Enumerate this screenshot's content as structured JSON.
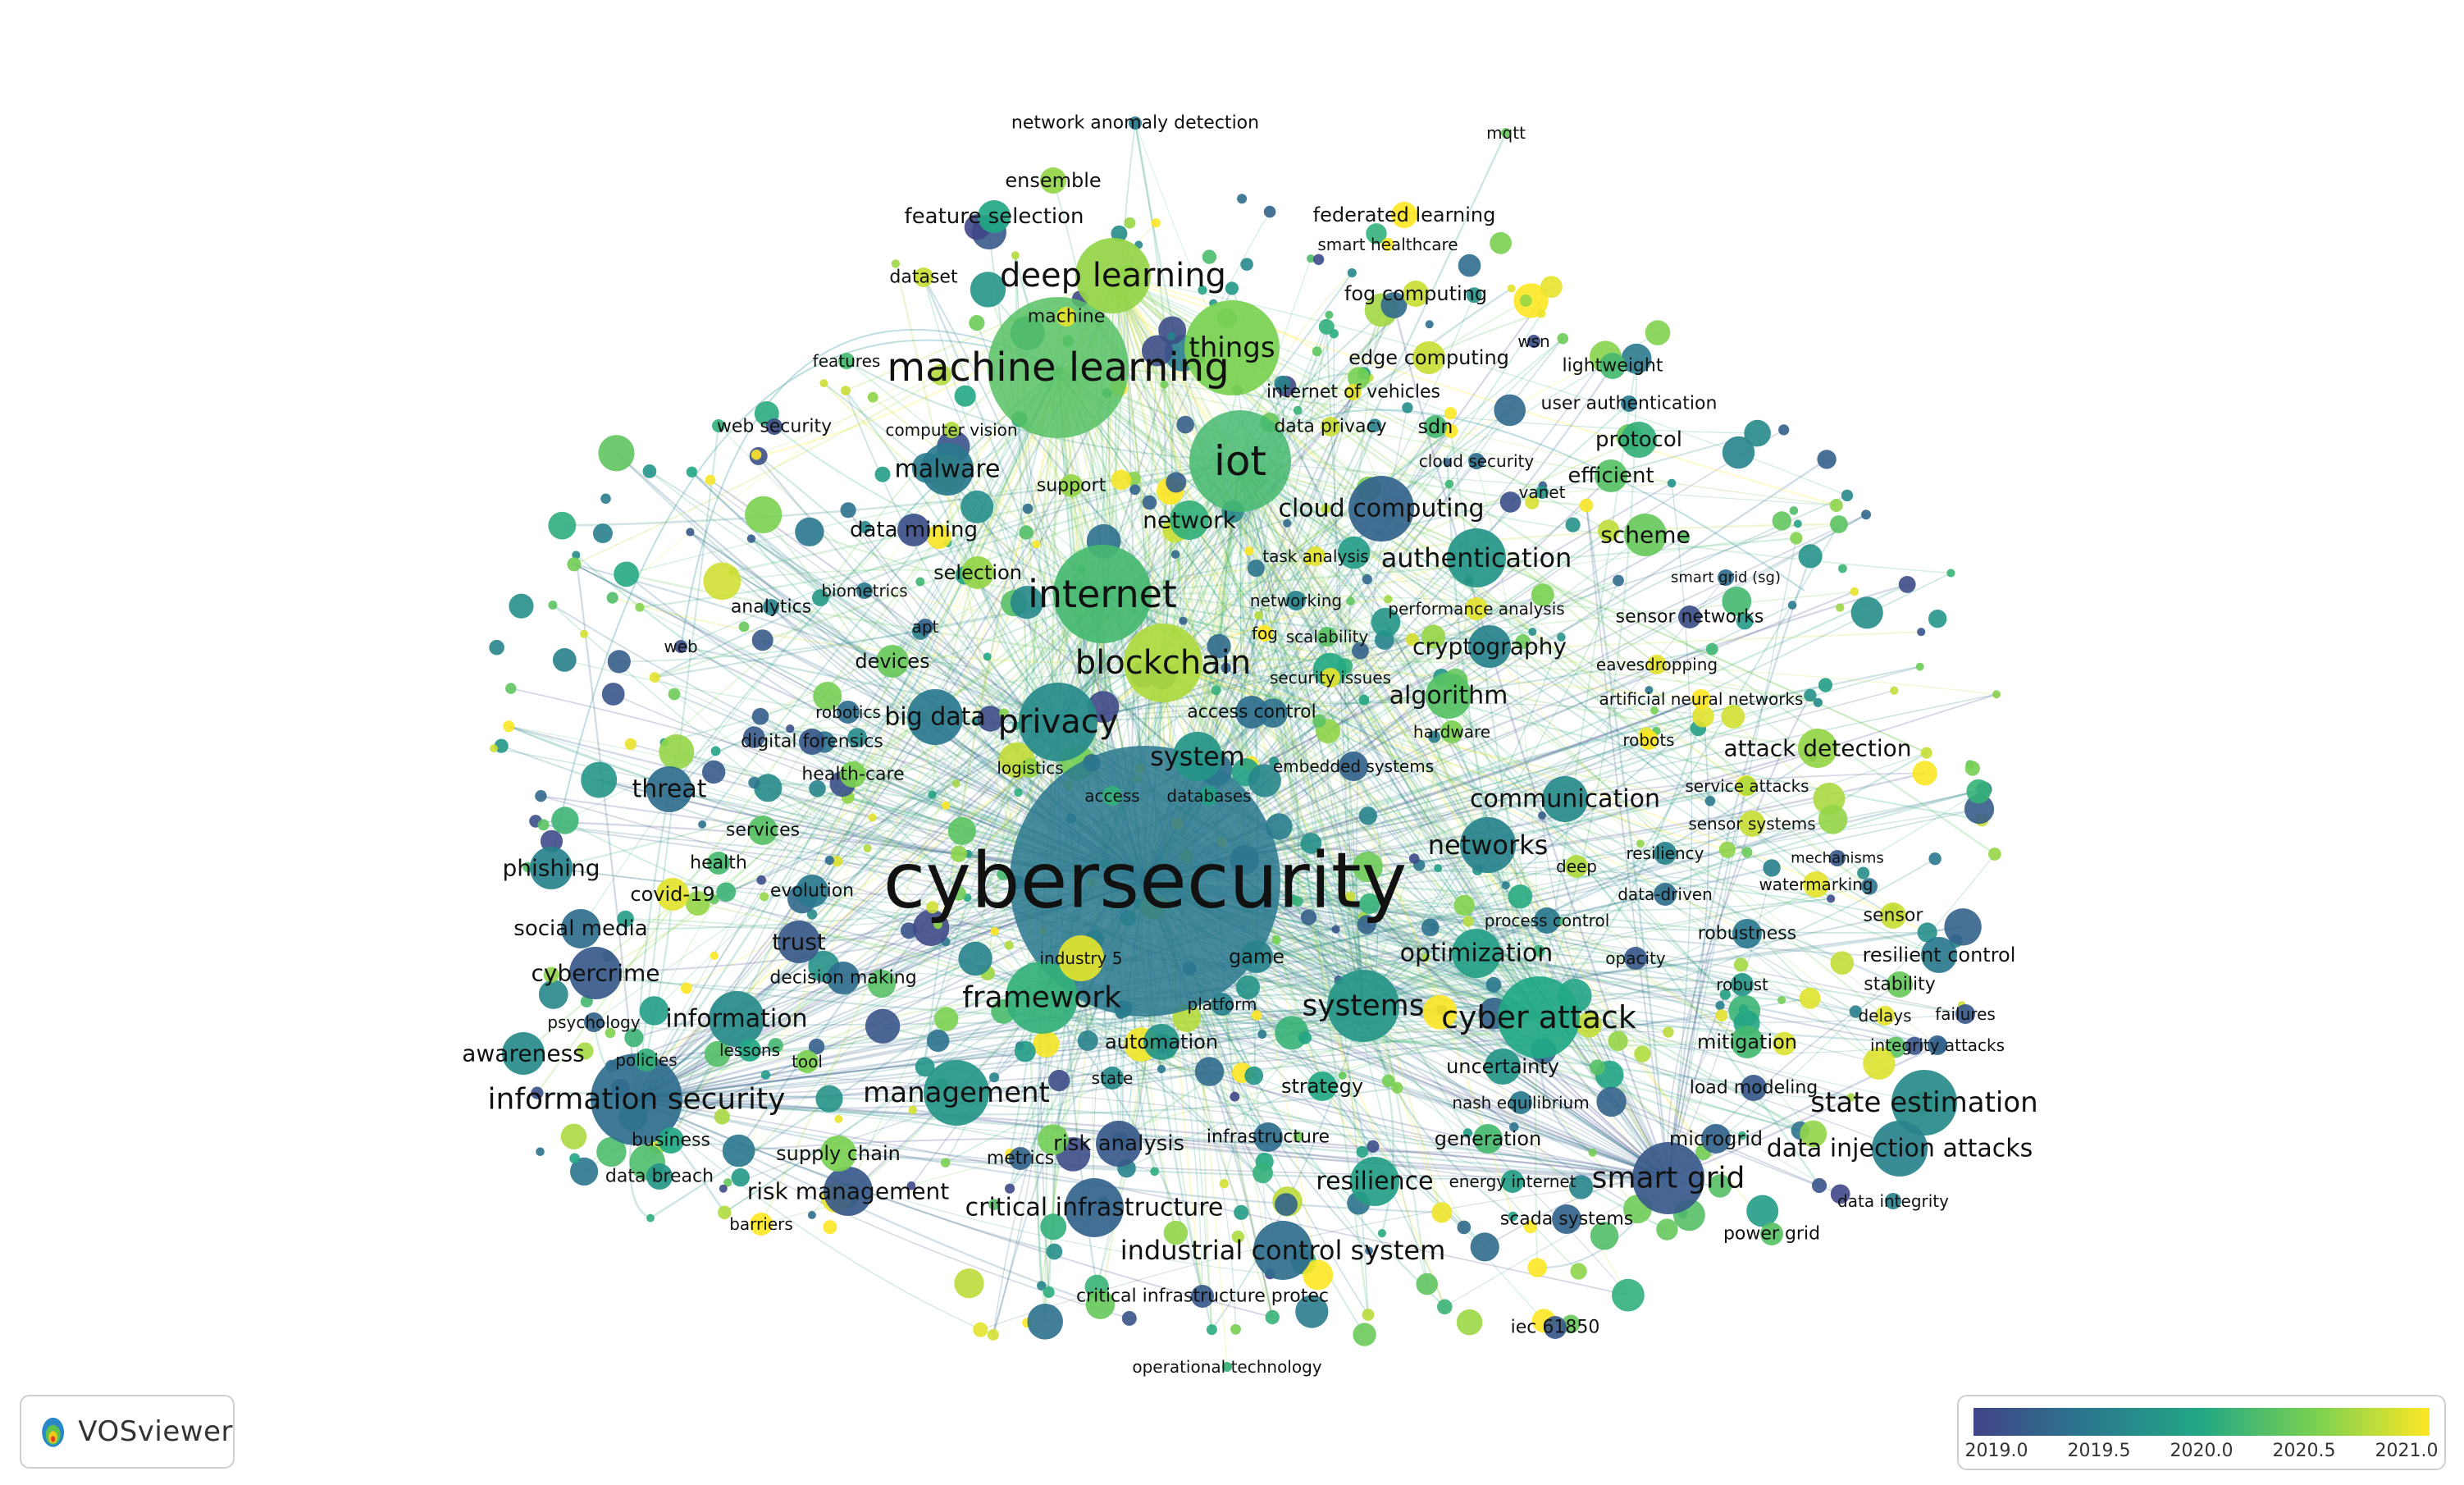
{
  "app": {
    "name": "VOSviewer"
  },
  "legend": {
    "colors": [
      "#414487",
      "#2a788e",
      "#22a884",
      "#7ad151",
      "#fde725"
    ],
    "ticks": [
      "2019.0",
      "2019.5",
      "2020.0",
      "2020.5",
      "2021.0"
    ]
  },
  "nodes": [
    {
      "label": "cybersecurity",
      "year": 2019.5
    },
    {
      "label": "machine learning",
      "year": 2020.3
    },
    {
      "label": "deep learning",
      "year": 2020.6
    },
    {
      "label": "iot",
      "year": 2020.2
    },
    {
      "label": "internet",
      "year": 2020.2
    },
    {
      "label": "blockchain",
      "year": 2020.7
    },
    {
      "label": "privacy",
      "year": 2019.7
    },
    {
      "label": "things",
      "year": 2020.5
    },
    {
      "label": "big data",
      "year": 2019.5
    },
    {
      "label": "system",
      "year": 2019.8
    },
    {
      "label": "framework",
      "year": 2020.1
    },
    {
      "label": "systems",
      "year": 2019.8
    },
    {
      "label": "cyber attack",
      "year": 2020.0
    },
    {
      "label": "smart grid",
      "year": 2019.2
    },
    {
      "label": "information security",
      "year": 2019.4
    },
    {
      "label": "management",
      "year": 2019.8
    },
    {
      "label": "networks",
      "year": 2019.6
    },
    {
      "label": "cloud computing",
      "year": 2019.3
    },
    {
      "label": "authentication",
      "year": 2019.8
    },
    {
      "label": "malware",
      "year": 2019.5
    },
    {
      "label": "industrial control system",
      "year": 2019.4
    },
    {
      "label": "critical infrastructure",
      "year": 2019.3
    },
    {
      "label": "state estimation",
      "year": 2019.7
    },
    {
      "label": "data injection attacks",
      "year": 2019.6
    },
    {
      "label": "optimization",
      "year": 2019.9
    },
    {
      "label": "communication",
      "year": 2019.7
    },
    {
      "label": "algorithm",
      "year": 2020.3
    },
    {
      "label": "cryptography",
      "year": 2019.6
    },
    {
      "label": "threat",
      "year": 2019.4
    },
    {
      "label": "phishing",
      "year": 2019.6
    },
    {
      "label": "cybercrime",
      "year": 2019.2
    },
    {
      "label": "information",
      "year": 2019.7
    },
    {
      "label": "awareness",
      "year": 2019.7
    },
    {
      "label": "risk management",
      "year": 2019.2
    },
    {
      "label": "risk analysis",
      "year": 2019.2
    },
    {
      "label": "resilience",
      "year": 2019.9
    },
    {
      "label": "network",
      "year": 2020.1
    },
    {
      "label": "attack detection",
      "year": 2020.6
    },
    {
      "label": "scheme",
      "year": 2020.4
    },
    {
      "label": "protocol",
      "year": 2020.1
    },
    {
      "label": "efficient",
      "year": 2020.3
    },
    {
      "label": "feature selection",
      "year": 2020.0
    },
    {
      "label": "ensemble",
      "year": 2020.6
    },
    {
      "label": "network anomaly detection",
      "year": 2019.5
    },
    {
      "label": "mqtt",
      "year": 2020.4
    },
    {
      "label": "federated learning",
      "year": 2021.0
    },
    {
      "label": "smart healthcare",
      "year": 2021.0
    },
    {
      "label": "fog computing",
      "year": 2020.8
    },
    {
      "label": "wsn",
      "year": 2019.1
    },
    {
      "label": "lightweight",
      "year": 2020.2
    },
    {
      "label": "edge computing",
      "year": 2020.8
    },
    {
      "label": "internet of vehicles",
      "year": 2020.9
    },
    {
      "label": "user authentication",
      "year": 2019.5
    },
    {
      "label": "data privacy",
      "year": 2020.8
    },
    {
      "label": "sdn",
      "year": 2020.2
    },
    {
      "label": "cloud security",
      "year": 2019.4
    },
    {
      "label": "vanet",
      "year": 2019.8
    },
    {
      "label": "dataset",
      "year": 2020.8
    },
    {
      "label": "machine",
      "year": 2020.9
    },
    {
      "label": "features",
      "year": 2020.2
    },
    {
      "label": "web security",
      "year": 2019.1
    },
    {
      "label": "computer vision",
      "year": 2020.7
    },
    {
      "label": "support",
      "year": 2020.6
    },
    {
      "label": "data mining",
      "year": 2019.1
    },
    {
      "label": "selection",
      "year": 2020.6
    },
    {
      "label": "biometrics",
      "year": 2019.5
    },
    {
      "label": "analytics",
      "year": 2019.6
    },
    {
      "label": "apt",
      "year": 2019.3
    },
    {
      "label": "web",
      "year": 2019.1
    },
    {
      "label": "devices",
      "year": 2020.4
    },
    {
      "label": "robotics",
      "year": 2019.4
    },
    {
      "label": "digital forensics",
      "year": 2019.2
    },
    {
      "label": "health-care",
      "year": 2020.5
    },
    {
      "label": "services",
      "year": 2020.3
    },
    {
      "label": "health",
      "year": 2020.2
    },
    {
      "label": "covid-19",
      "year": 2020.9
    },
    {
      "label": "evolution",
      "year": 2019.5
    },
    {
      "label": "social media",
      "year": 2019.4
    },
    {
      "label": "trust",
      "year": 2019.2
    },
    {
      "label": "decision making",
      "year": 2019.4
    },
    {
      "label": "psychology",
      "year": 2019.3
    },
    {
      "label": "policies",
      "year": 2020.1
    },
    {
      "label": "lessons",
      "year": 2020.0
    },
    {
      "label": "tool",
      "year": 2020.5
    },
    {
      "label": "business",
      "year": 2020.0
    },
    {
      "label": "supply chain",
      "year": 2020.5
    },
    {
      "label": "data breach",
      "year": 2019.8
    },
    {
      "label": "barriers",
      "year": 2021.0
    },
    {
      "label": "metrics",
      "year": 2019.3
    },
    {
      "label": "logistics",
      "year": 2020.6
    },
    {
      "label": "access",
      "year": 2020.1
    },
    {
      "label": "databases",
      "year": 2019.9
    },
    {
      "label": "industry 5",
      "year": 2020.9
    },
    {
      "label": "game",
      "year": 2019.6
    },
    {
      "label": "platform",
      "year": 2019.6
    },
    {
      "label": "automation",
      "year": 2019.8
    },
    {
      "label": "state",
      "year": 2019.7
    },
    {
      "label": "infrastructure",
      "year": 2019.4
    },
    {
      "label": "strategy",
      "year": 2020.0
    },
    {
      "label": "critical infrastructure protec",
      "year": 2019.2
    },
    {
      "label": "operational technology",
      "year": 2020.1
    },
    {
      "label": "iec 61850",
      "year": 2019.2
    },
    {
      "label": "scada systems",
      "year": 2019.3
    },
    {
      "label": "energy internet",
      "year": 2019.9
    },
    {
      "label": "generation",
      "year": 2020.2
    },
    {
      "label": "nash equilibrium",
      "year": 2019.5
    },
    {
      "label": "uncertainty",
      "year": 2019.8
    },
    {
      "label": "microgrid",
      "year": 2019.3
    },
    {
      "label": "load modeling",
      "year": 2019.2
    },
    {
      "label": "mitigation",
      "year": 2020.2
    },
    {
      "label": "power grid",
      "year": 2020.3
    },
    {
      "label": "data integrity",
      "year": 2019.6
    },
    {
      "label": "integrity attacks",
      "year": 2019.3
    },
    {
      "label": "failures",
      "year": 2019.2
    },
    {
      "label": "delays",
      "year": 2020.9
    },
    {
      "label": "stability",
      "year": 2020.4
    },
    {
      "label": "robust",
      "year": 2019.8
    },
    {
      "label": "resilient control",
      "year": 2019.5
    },
    {
      "label": "sensor",
      "year": 2020.8
    },
    {
      "label": "robustness",
      "year": 2019.5
    },
    {
      "label": "opacity",
      "year": 2019.2
    },
    {
      "label": "data-driven",
      "year": 2019.4
    },
    {
      "label": "process control",
      "year": 2019.5
    },
    {
      "label": "deep",
      "year": 2020.7
    },
    {
      "label": "watermarking",
      "year": 2020.9
    },
    {
      "label": "resiliency",
      "year": 2019.6
    },
    {
      "label": "mechanisms",
      "year": 2019.2
    },
    {
      "label": "sensor systems",
      "year": 2020.8
    },
    {
      "label": "service attacks",
      "year": 2020.7
    },
    {
      "label": "robots",
      "year": 2021.0
    },
    {
      "label": "artificial neural networks",
      "year": 2021.0
    },
    {
      "label": "eavesdropping",
      "year": 2020.9
    },
    {
      "label": "sensor networks",
      "year": 2019.1
    },
    {
      "label": "smart grid (sg)",
      "year": 2019.4
    },
    {
      "label": "performance analysis",
      "year": 2020.9
    },
    {
      "label": "task analysis",
      "year": 2020.9
    },
    {
      "label": "networking",
      "year": 2019.6
    },
    {
      "label": "fog",
      "year": 2021.0
    },
    {
      "label": "scalability",
      "year": 2020.3
    },
    {
      "label": "security issues",
      "year": 2020.9
    },
    {
      "label": "access control",
      "year": 2019.4
    },
    {
      "label": "hardware",
      "year": 2020.5
    },
    {
      "label": "embedded systems",
      "year": 2019.3
    }
  ]
}
